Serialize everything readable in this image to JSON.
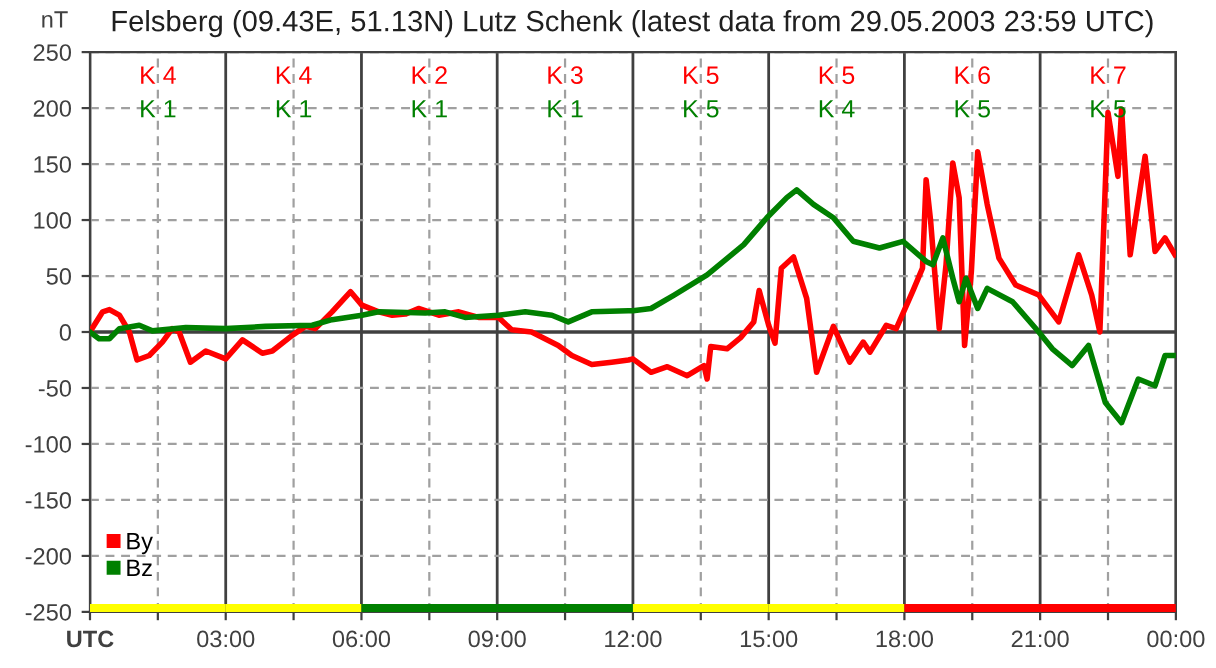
{
  "chart_data": {
    "type": "line",
    "title": "Felsberg (09.43E, 51.13N) Lutz Schenk (latest data from 29.05.2003 23:59 UTC)",
    "ylabel": "nT",
    "xlim": [
      0,
      24
    ],
    "ylim": [
      -250,
      250
    ],
    "xticks": [
      {
        "value": 0,
        "label": "UTC"
      },
      {
        "value": 1.5,
        "label": null
      },
      {
        "value": 3,
        "label": "03:00"
      },
      {
        "value": 4.5,
        "label": null
      },
      {
        "value": 6,
        "label": "06:00"
      },
      {
        "value": 7.5,
        "label": null
      },
      {
        "value": 9,
        "label": "09:00"
      },
      {
        "value": 10.5,
        "label": null
      },
      {
        "value": 12,
        "label": "12:00"
      },
      {
        "value": 13.5,
        "label": null
      },
      {
        "value": 15,
        "label": "15:00"
      },
      {
        "value": 16.5,
        "label": null
      },
      {
        "value": 18,
        "label": "18:00"
      },
      {
        "value": 19.5,
        "label": null
      },
      {
        "value": 21,
        "label": "21:00"
      },
      {
        "value": 22.5,
        "label": null
      },
      {
        "value": 24,
        "label": "00:00"
      }
    ],
    "yticks": [
      -250,
      -200,
      -150,
      -100,
      -50,
      0,
      50,
      100,
      150,
      200,
      250
    ],
    "grid": true,
    "legend": "bottom left",
    "ref_lines": [
      {
        "axis": "y",
        "value": 0,
        "label": null,
        "color": "#404040"
      }
    ],
    "annotations": [
      "K 4",
      "K 4",
      "K 2",
      "K 3",
      "K 5",
      "K 5",
      "K 6",
      "K 7",
      "K 1",
      "K 1",
      "K 1",
      "K 1",
      "K 5",
      "K 4",
      "K 5",
      "K 5"
    ],
    "series": [
      {
        "name": "By",
        "color": "#ff0000",
        "x": [
          0,
          0.28,
          0.43,
          0.65,
          0.87,
          1.04,
          1.31,
          1.6,
          1.82,
          1.97,
          2.22,
          2.56,
          3,
          3.37,
          3.81,
          4.03,
          4.47,
          4.76,
          4.98,
          5.35,
          5.76,
          6.01,
          6.38,
          6.68,
          6.97,
          7.26,
          7.71,
          8.15,
          8.59,
          9.03,
          9.32,
          9.76,
          10.35,
          10.65,
          11.09,
          11.53,
          11.9,
          12,
          12.4,
          12.76,
          13.2,
          13.57,
          13.64,
          13.72,
          14.08,
          14.38,
          14.67,
          14.79,
          15,
          15.14,
          15.28,
          15.55,
          15.84,
          16.06,
          16.43,
          16.79,
          17.09,
          17.24,
          17.6,
          17.82,
          18.19,
          18.4,
          18.48,
          18.58,
          18.77,
          18.92,
          19.07,
          19.21,
          19.33,
          19.48,
          19.62,
          19.83,
          20.09,
          20.46,
          20.97,
          21.41,
          21.85,
          22.14,
          22.32,
          22.5,
          22.72,
          22.8,
          22.99,
          23.32,
          23.54,
          23.76,
          23.98
        ],
        "values": [
          0,
          18,
          20,
          15,
          0,
          -25,
          -21,
          -9,
          3,
          0,
          -27,
          -17,
          -24,
          -7,
          -19,
          -17,
          -3,
          5,
          3,
          18,
          36,
          24,
          18,
          15,
          16,
          21,
          15,
          18,
          13,
          13,
          2,
          0,
          -12,
          -21,
          -29,
          -27,
          -25,
          -24,
          -36,
          -31,
          -39,
          -30,
          -42,
          -13,
          -15,
          -5,
          9,
          37,
          6,
          -10,
          57,
          67,
          30,
          -36,
          5,
          -27,
          -9,
          -18,
          6,
          3,
          37,
          57,
          136,
          99,
          3,
          60,
          151,
          120,
          -12,
          54,
          161,
          114,
          66,
          42,
          33,
          9,
          69,
          33,
          0,
          196,
          139,
          199,
          69,
          157,
          72,
          84,
          69
        ]
      },
      {
        "name": "Bz",
        "color": "#008000",
        "x": [
          0,
          0.2,
          0.43,
          0.65,
          1.09,
          1.38,
          2.12,
          3,
          3.88,
          4.91,
          5.35,
          6.01,
          6.38,
          7.41,
          7.85,
          8.29,
          9.03,
          9.62,
          10.21,
          10.57,
          11.09,
          11.9,
          12,
          12.4,
          12.91,
          13.64,
          14.45,
          14.96,
          15.4,
          15.62,
          15.99,
          16.43,
          16.87,
          17.45,
          17.97,
          18.48,
          18.63,
          18.85,
          19.07,
          19.21,
          19.36,
          19.62,
          19.83,
          20.39,
          20.97,
          21.27,
          21.71,
          22.07,
          22.44,
          22.8,
          23.17,
          23.54,
          23.76,
          23.98
        ],
        "values": [
          0,
          -6,
          -6,
          3,
          6,
          1,
          4,
          3,
          5,
          6,
          11,
          15,
          18,
          17,
          18,
          13,
          15,
          18,
          15,
          9,
          18,
          19,
          19,
          21,
          33,
          51,
          78,
          102,
          120,
          127,
          114,
          102,
          81,
          75,
          81,
          63,
          60,
          84,
          48,
          27,
          48,
          21,
          39,
          27,
          0,
          -15,
          -30,
          -12,
          -63,
          -81,
          -42,
          -48,
          -21,
          -21
        ]
      },
      {
        "type": "bar",
        "x": [
          1.5,
          4.5,
          7.5,
          10.5,
          13.5,
          16.5,
          19.5,
          22.5
        ],
        "base": [
          -250,
          -250,
          -250,
          -250,
          -250,
          -250,
          -250,
          -250
        ],
        "values": [
          7,
          7,
          7,
          7,
          7,
          7,
          7,
          7
        ],
        "colors": [
          "#ffff00",
          "#ffff00",
          "#008000",
          "#008000",
          "#ffff00",
          "#ffff00",
          "#ff0000",
          "#ff0000"
        ]
      }
    ]
  }
}
